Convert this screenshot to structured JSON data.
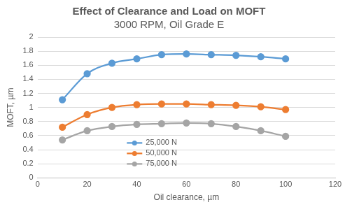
{
  "chart_data": {
    "type": "line",
    "title": "Effect of Clearance and Load on MOFT",
    "subtitle": "3000 RPM, Oil Grade E",
    "x_label": "Oil clearance, µm",
    "y_label": "MOFT, µm",
    "x": [
      10,
      20,
      30,
      40,
      50,
      60,
      70,
      80,
      90,
      100
    ],
    "series": [
      {
        "name": "25,000 N",
        "color": "#5b9bd5",
        "values": [
          1.11,
          1.48,
          1.63,
          1.69,
          1.75,
          1.76,
          1.75,
          1.74,
          1.72,
          1.69
        ]
      },
      {
        "name": "50,000 N",
        "color": "#ed7d31",
        "values": [
          0.72,
          0.9,
          1.0,
          1.04,
          1.05,
          1.05,
          1.04,
          1.03,
          1.01,
          0.97
        ]
      },
      {
        "name": "75,000 N",
        "color": "#a5a5a5",
        "values": [
          0.54,
          0.67,
          0.73,
          0.76,
          0.77,
          0.78,
          0.77,
          0.73,
          0.67,
          0.59
        ]
      }
    ],
    "xlim": [
      0,
      120
    ],
    "xticks": [
      0,
      20,
      40,
      60,
      80,
      100,
      120
    ],
    "ylim": [
      0,
      2
    ],
    "yticks": [
      0,
      0.2,
      0.4,
      0.6,
      0.8,
      1,
      1.2,
      1.4,
      1.6,
      1.8,
      2
    ],
    "grid": "y",
    "legend": "bottom",
    "marker": "circle",
    "line_style": "solid"
  }
}
